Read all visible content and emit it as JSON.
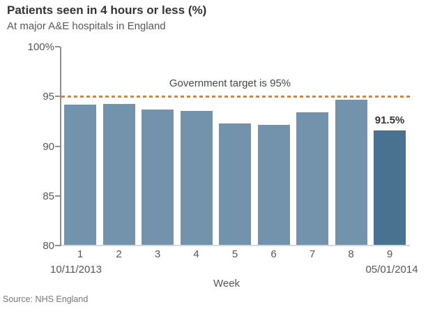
{
  "header": {
    "title": "Patients seen in 4 hours or less (%)",
    "subtitle": "At major A&E hospitals in England"
  },
  "source_note": "Source: NHS England",
  "chart_data": {
    "type": "bar",
    "title": "Patients seen in 4 hours or less (%)",
    "subtitle": "At major A&E hospitals in England",
    "categories": [
      "1",
      "2",
      "3",
      "4",
      "5",
      "6",
      "7",
      "8",
      "9"
    ],
    "values": [
      94.1,
      94.2,
      93.6,
      93.5,
      92.2,
      92.1,
      93.3,
      94.6,
      91.5
    ],
    "xlabel": "Week",
    "ylabel": "",
    "ylim": [
      80,
      100
    ],
    "yticks": [
      {
        "label": "100%",
        "value": 100
      },
      {
        "label": "95",
        "value": 95
      },
      {
        "label": "90",
        "value": 90
      },
      {
        "label": "85",
        "value": 85
      },
      {
        "label": "80",
        "value": 80
      }
    ],
    "grid": false,
    "legend": false,
    "target": {
      "value": 95,
      "label": "Government target is 95%",
      "color": "#d6882e"
    },
    "highlight_index": 8,
    "annotations": [
      {
        "bar_index": 8,
        "text": "91.5%"
      }
    ],
    "x_start_label": "10/11/2013",
    "x_end_label": "05/01/2014",
    "bar_color": "#7293ab",
    "highlight_color": "#497190",
    "axis_color": "#8f8f8f",
    "baseline_color": "#d8d8d8"
  }
}
